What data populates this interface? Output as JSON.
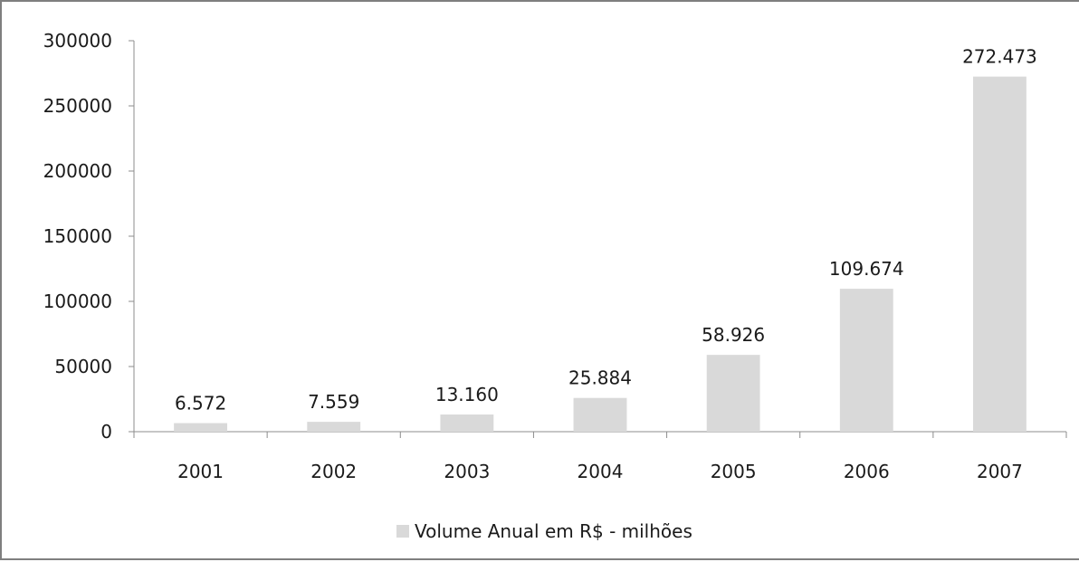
{
  "chart_data": {
    "type": "bar",
    "categories": [
      "2001",
      "2002",
      "2003",
      "2004",
      "2005",
      "2006",
      "2007"
    ],
    "series": [
      {
        "name": "Volume Anual em R$ - milhões",
        "values": [
          6572,
          7559,
          13160,
          25884,
          58926,
          109674,
          272473
        ],
        "data_labels": [
          "6.572",
          "7.559",
          "13.160",
          "25.884",
          "58.926",
          "109.674",
          "272.473"
        ]
      }
    ],
    "title": "",
    "xlabel": "",
    "ylabel": "",
    "ylim": [
      0,
      300000
    ],
    "yticks": [
      "0",
      "50000",
      "100000",
      "150000",
      "200000",
      "250000",
      "300000"
    ],
    "grid": false,
    "legend_position": "bottom",
    "colors": {
      "bar": "#d9d9d9",
      "axis": "#8c8c8c",
      "text": "#1a1a1a",
      "frame": "#7f7f7f"
    }
  }
}
